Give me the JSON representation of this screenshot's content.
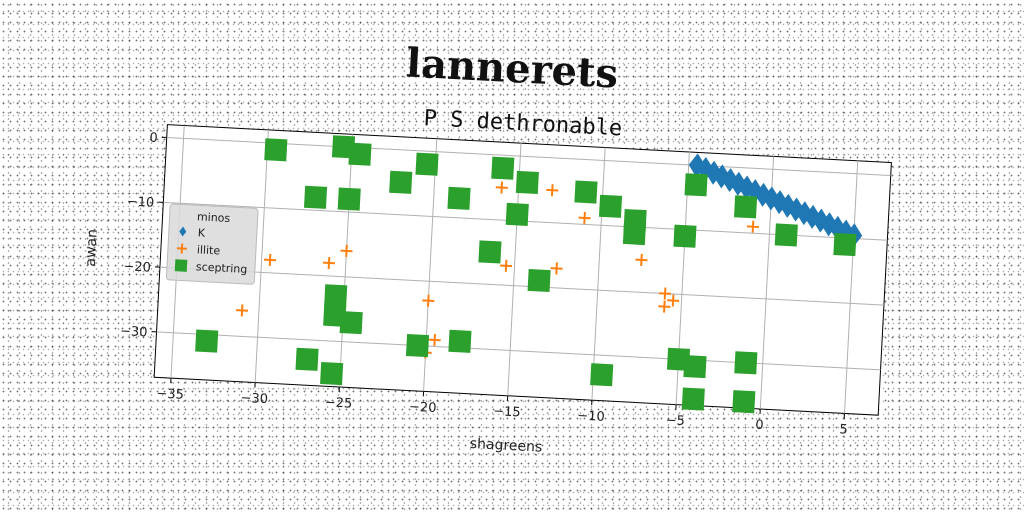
{
  "chart_data": {
    "type": "scatter",
    "title": "lannerets",
    "subtitle": "P S dethronable",
    "xlabel": "shagreens",
    "ylabel": "awan",
    "xlim": [
      -36,
      7
    ],
    "ylim": [
      -37,
      2
    ],
    "xticks": [
      -35,
      -30,
      -25,
      -20,
      -15,
      -10,
      -5,
      0,
      5
    ],
    "yticks": [
      0,
      -10,
      -20,
      -30
    ],
    "xtick_labels": [
      "−35",
      "−30",
      "−25",
      "−20",
      "−15",
      "−10",
      "−5",
      "0",
      "5"
    ],
    "ytick_labels": [
      "0",
      "−10",
      "−20",
      "−30"
    ],
    "grid": true,
    "legend": {
      "title": "minos",
      "placement": "center-left"
    },
    "series": [
      {
        "name": "K",
        "marker": "diamond",
        "color": "#1f77b4",
        "x": [
          -4.5,
          -4.0,
          -3.5,
          -3.0,
          -2.5,
          -2.0,
          -1.5,
          -1.0,
          -0.5,
          0.0,
          0.5,
          1.0,
          1.5,
          2.0,
          2.5,
          3.0,
          3.5,
          4.0,
          4.5,
          5.0
        ],
        "y": [
          0.0,
          -0.5,
          -1.0,
          -1.5,
          -2.0,
          -2.5,
          -3.0,
          -3.5,
          -4.0,
          -4.5,
          -5.0,
          -5.5,
          -6.0,
          -6.5,
          -7.0,
          -7.5,
          -8.0,
          -8.5,
          -9.0,
          -9.5
        ]
      },
      {
        "name": "illite",
        "marker": "plus",
        "color": "#ff7f0e",
        "x": [
          -16,
          -13,
          -11,
          -15.5,
          -12.5,
          -7.5,
          -6,
          -5.5,
          -6,
          -1,
          -29.5,
          -26,
          -25,
          -31,
          -20,
          -19.5,
          -20
        ],
        "y": [
          -5,
          -5,
          -9,
          -17,
          -17,
          -15,
          -20,
          -21,
          -22,
          -9,
          -18,
          -18,
          -16,
          -26,
          -23,
          -29,
          -31
        ]
      },
      {
        "name": "sceptring",
        "marker": "square",
        "color": "#2ca02c",
        "x": [
          -29.5,
          -25.5,
          -24.5,
          -20.5,
          -16,
          -14.5,
          -11,
          -9.5,
          -8,
          -4.5,
          -1.5,
          1,
          -22,
          -27,
          -25,
          -18.5,
          -15,
          -8,
          -5,
          4.5,
          -16.5,
          -13.5,
          -25.5,
          -25.5,
          -24.5,
          -20.5,
          -18,
          -33,
          -27,
          -25.5,
          -5,
          -4,
          -1,
          -9.5,
          -4,
          -1
        ],
        "y": [
          -1,
          0,
          -1,
          -2,
          -2,
          -4,
          -5,
          -7,
          -9,
          -3,
          -6,
          -10,
          -5,
          -8,
          -8,
          -7,
          -9,
          -11,
          -11,
          -11,
          -15,
          -19,
          -23,
          -26,
          -27,
          -30,
          -29,
          -31,
          -33,
          -35,
          -30,
          -31,
          -30,
          -33,
          -36,
          -36
        ]
      }
    ]
  }
}
